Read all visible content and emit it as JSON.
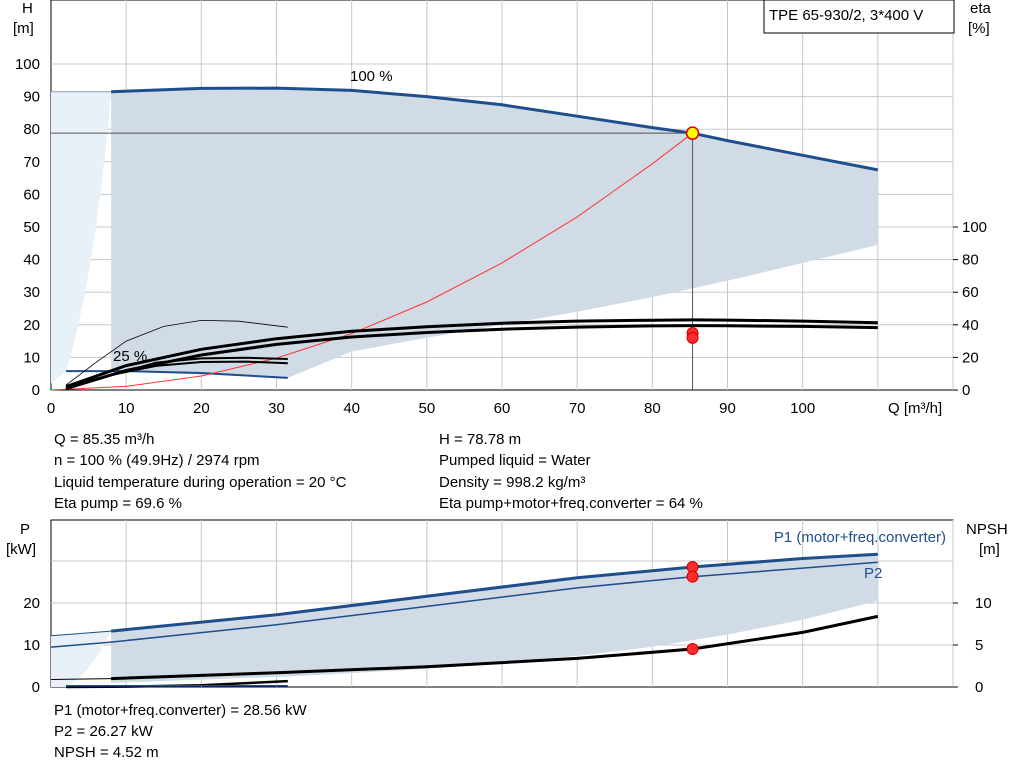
{
  "chart_data": [
    {
      "type": "line",
      "title": "TPE 65-930/2, 3*400 V",
      "xlabel": "Q [m³/h]",
      "ylabel": "H\n[m]",
      "y2label": "eta\n[%]",
      "xlim": [
        0,
        120
      ],
      "ylim": [
        0,
        110
      ],
      "y2lim": [
        0,
        110
      ],
      "xticks": [
        0,
        10,
        20,
        30,
        40,
        50,
        60,
        70,
        80,
        90,
        100
      ],
      "yticks": [
        0,
        10,
        20,
        30,
        40,
        50,
        60,
        70,
        80,
        90,
        100
      ],
      "y2ticks": [
        0,
        20,
        40,
        60,
        80,
        100
      ],
      "grid": true,
      "annotations": [
        "100 %",
        "25 %"
      ],
      "duty_point": {
        "x": 85.35,
        "y": 78.78
      },
      "series": [
        {
          "role": "head-100",
          "color": "#1f4e8c",
          "x": [
            8,
            20,
            30,
            40,
            50,
            60,
            70,
            80,
            85.35,
            90,
            100,
            110
          ],
          "y": [
            91.5,
            92.5,
            92.6,
            91.9,
            90,
            87.5,
            84,
            80.5,
            78.78,
            76.5,
            72,
            67.5
          ]
        },
        {
          "role": "head-25",
          "color": "#1f4e8c",
          "x": [
            2,
            10,
            20,
            31.5
          ],
          "y": [
            5.8,
            5.8,
            5.2,
            3.7
          ]
        },
        {
          "role": "system-curve",
          "color": "#ff3333",
          "x": [
            0,
            10,
            20,
            30,
            40,
            50,
            60,
            70,
            80,
            85.35
          ],
          "y": [
            0,
            1.1,
            4.3,
            9.8,
            17.3,
            27,
            39,
            53.1,
            69.4,
            78.78
          ]
        },
        {
          "role": "eta-upper",
          "color": "#000000",
          "x": [
            2,
            10,
            20,
            30,
            40,
            50,
            60,
            70,
            80,
            85.35,
            90,
            100,
            110
          ],
          "y": [
            2,
            15,
            25,
            31.5,
            36,
            38.8,
            41,
            42.3,
            42.8,
            43,
            42.9,
            42.3,
            41.2
          ]
        },
        {
          "role": "eta-lower",
          "color": "#000000",
          "x": [
            2,
            10,
            20,
            30,
            40,
            50,
            60,
            70,
            80,
            85.35,
            90,
            100,
            110
          ],
          "y": [
            1,
            12,
            21.5,
            28,
            32.5,
            35.3,
            37.3,
            38.6,
            39.3,
            39.5,
            39.4,
            39,
            38.3
          ]
        },
        {
          "role": "eta-25",
          "color": "#000000",
          "x": [
            8,
            14,
            20,
            26,
            31.5
          ],
          "y": [
            9.2,
            14.8,
            17.2,
            17.4,
            16.4
          ]
        },
        {
          "role": "eta-25b",
          "color": "#000000",
          "x": [
            2,
            8,
            14,
            20,
            26,
            31.5
          ],
          "y": [
            0.5,
            9,
            16.8,
            19.4,
            19.8,
            19
          ]
        },
        {
          "role": "eta-thin",
          "color": "#000000",
          "x": [
            2,
            6,
            10,
            15,
            20,
            25,
            31.5
          ],
          "y": [
            3,
            17,
            30,
            39,
            42.7,
            42.2,
            38.5
          ]
        }
      ],
      "duty_markers": [
        {
          "x": 85.35,
          "y": 35.0
        },
        {
          "x": 85.35,
          "y": 32.0
        }
      ]
    },
    {
      "type": "line",
      "ylabel": "P\n[kW]",
      "y2label": "NPSH\n[m]",
      "xlim": [
        0,
        120
      ],
      "ylim": [
        0,
        35
      ],
      "y2lim": [
        0,
        17.5
      ],
      "yticks": [
        0,
        10,
        20
      ],
      "y2ticks": [
        0,
        5,
        10
      ],
      "grid": true,
      "series": [
        {
          "name": "P1 (motor+freq.converter)",
          "color": "#1f4e8c",
          "x": [
            8,
            30,
            50,
            70,
            85.35,
            100,
            110
          ],
          "y": [
            13.3,
            17.2,
            21.6,
            26.0,
            28.56,
            30.6,
            31.6
          ]
        },
        {
          "name": "P2",
          "color": "#1f4e8c",
          "x": [
            0,
            8,
            30,
            50,
            70,
            85.35,
            100,
            110
          ],
          "y": [
            9.5,
            10.7,
            14.8,
            19.2,
            23.6,
            26.27,
            28.3,
            29.7
          ]
        },
        {
          "role": "npsh",
          "color": "#000000",
          "x": [
            8,
            30,
            50,
            70,
            85.35,
            100,
            110
          ],
          "y": [
            1.0,
            1.7,
            2.4,
            3.4,
            4.52,
            6.5,
            8.4
          ]
        },
        {
          "role": "npsh-25",
          "color": "#000000",
          "x": [
            2,
            10,
            20,
            31.5
          ],
          "y": [
            0,
            0.05,
            0.2,
            0.7
          ]
        }
      ],
      "duty_markers": [
        {
          "x": 85.35,
          "y": 28.56
        },
        {
          "x": 85.35,
          "y": 26.27
        },
        {
          "x": 85.35,
          "y": 9.04
        }
      ]
    }
  ],
  "info": {
    "q": "Q = 85.35 m³/h",
    "n": "n = 100 % (49.9Hz) / 2974 rpm",
    "temp": "Liquid temperature during operation = 20 °C",
    "eta_pump": "Eta pump = 69.6 %",
    "h": "H = 78.78 m",
    "liquid": "Pumped liquid = Water",
    "density": "Density = 998.2 kg/m³",
    "eta_total": "Eta pump+motor+freq.converter = 64 %",
    "p1": "P1 (motor+freq.converter) = 28.56 kW",
    "p2": "P2 = 26.27 kW",
    "npsh": "NPSH = 4.52 m"
  },
  "colors": {
    "area": "#d0dbe6",
    "area_light": "#e8f0f8",
    "curve": "#1f4e8c",
    "grid": "#c8c8c8",
    "system": "#ff3333",
    "marker": "#ff2a2a",
    "marker_duty": "#ffff00"
  }
}
